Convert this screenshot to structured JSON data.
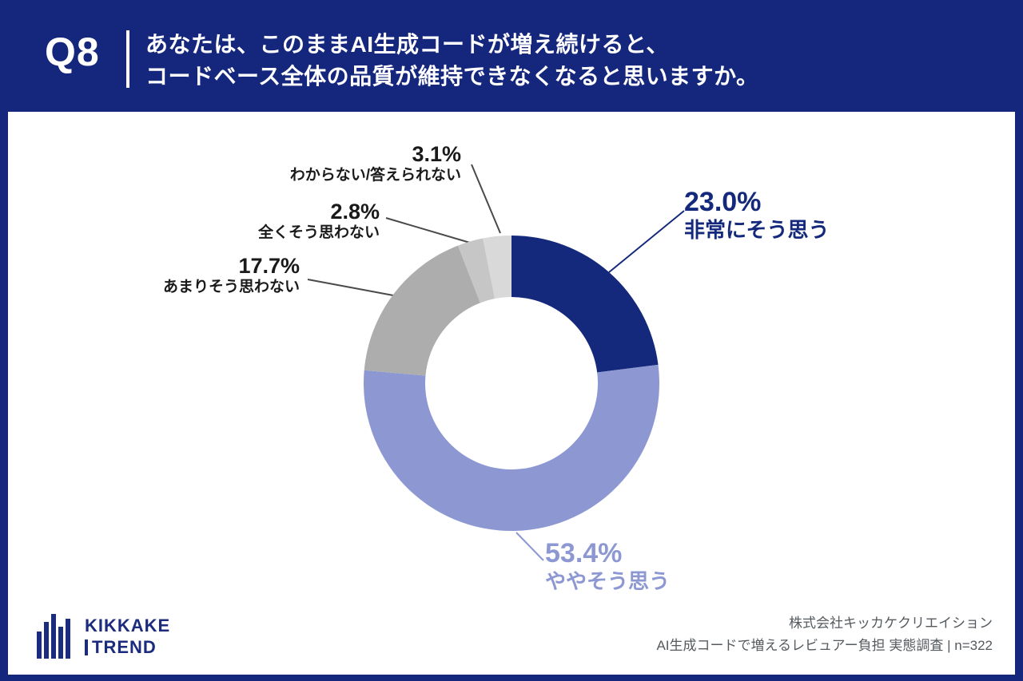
{
  "header": {
    "question_number": "Q8",
    "question_line1": "あなたは、このままAI生成コードが増え続けると、",
    "question_line2": "コードベース全体の品質が維持できなくなると思いますか。"
  },
  "chart_data": {
    "type": "pie",
    "donut": true,
    "title": "AI生成コードが増え続けるとコードベース全体の品質が維持できなくなると思うか",
    "categories": [
      "非常にそう思う",
      "ややそう思う",
      "あまりそう思わない",
      "全くそう思わない",
      "わからない/答えられない"
    ],
    "values": [
      23.0,
      53.4,
      17.7,
      2.8,
      3.1
    ],
    "value_labels": [
      "23.0%",
      "53.4%",
      "17.7%",
      "2.8%",
      "3.1%"
    ],
    "colors": [
      "#15297C",
      "#8D98D3",
      "#ADADAD",
      "#C6C6C6",
      "#D9D9D9"
    ],
    "label_colors": [
      "#15297C",
      "#8D98D3",
      "#1a1a1a",
      "#1a1a1a",
      "#1a1a1a"
    ],
    "start_angle_deg": -90,
    "direction": "clockwise",
    "legend_position": "callouts"
  },
  "footer": {
    "logo_line1": "KIKKAKE",
    "logo_line2": "TREND",
    "credit_line1": "株式会社キッカケクリエイション",
    "credit_line2": "AI生成コードで増えるレビュアー負担 実態調査 | n=322"
  }
}
